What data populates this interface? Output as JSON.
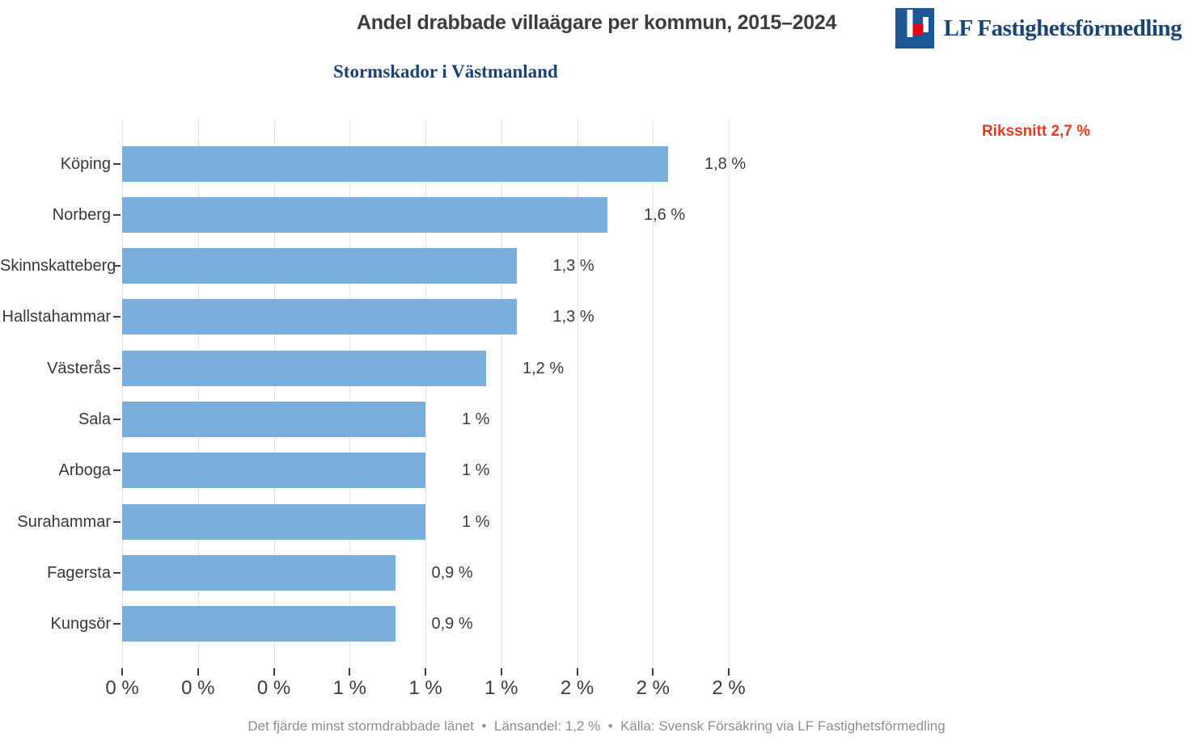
{
  "header": {
    "title": "Andel drabbade villaägare per kommun, 2015–2024",
    "subtitle": "Stormskador i Västmanland",
    "logo": {
      "text": "LF Fastighetsförmedling",
      "icon": "lf-logo-icon",
      "blue": "#1b5696",
      "red": "#e30613",
      "text_color": "#1b4475"
    }
  },
  "annotation": {
    "label": "Rikssnitt 2,7 %",
    "value_pct": 2.7,
    "color": "#e23b22"
  },
  "chart_data": {
    "type": "bar",
    "orientation": "horizontal",
    "title": "Andel drabbade villaägare per kommun, 2015–2024",
    "subtitle": "Stormskador i Västmanland",
    "categories": [
      "Köping",
      "Norberg",
      "Skinnskatteberg",
      "Hallstahammar",
      "Västerås",
      "Sala",
      "Arboga",
      "Surahammar",
      "Fagersta",
      "Kungsör"
    ],
    "values": [
      1.8,
      1.6,
      1.3,
      1.3,
      1.2,
      1.0,
      1.0,
      1.0,
      0.9,
      0.9
    ],
    "value_labels": [
      "1,8 %",
      "1,6 %",
      "1,3 %",
      "1,3 %",
      "1,2 %",
      "1 %",
      "1 %",
      "1 %",
      "0,9 %",
      "0,9 %"
    ],
    "x_ticks": [
      0,
      0.25,
      0.5,
      0.75,
      1.0,
      1.25,
      1.5,
      1.75,
      2.0
    ],
    "x_tick_labels": [
      "0 %",
      "0 %",
      "0 %",
      "1 %",
      "1 %",
      "1 %",
      "2 %",
      "2 %",
      "2 %"
    ],
    "xlim": [
      0,
      2.0
    ],
    "xlabel": "",
    "ylabel": "",
    "grid": "vertical",
    "legend": "none",
    "bar_color": "#7aaedd",
    "gridline_color": "#e4e4e4",
    "reference_annotation": "Rikssnitt 2,7 %",
    "reference_value": 2.7
  },
  "footer": {
    "text": "Det fjärde minst stormdrabbade länet  •  Länsandel: 1,2 %  •  Källa: Svensk Försäkring via LF Fastighetsförmedling"
  }
}
